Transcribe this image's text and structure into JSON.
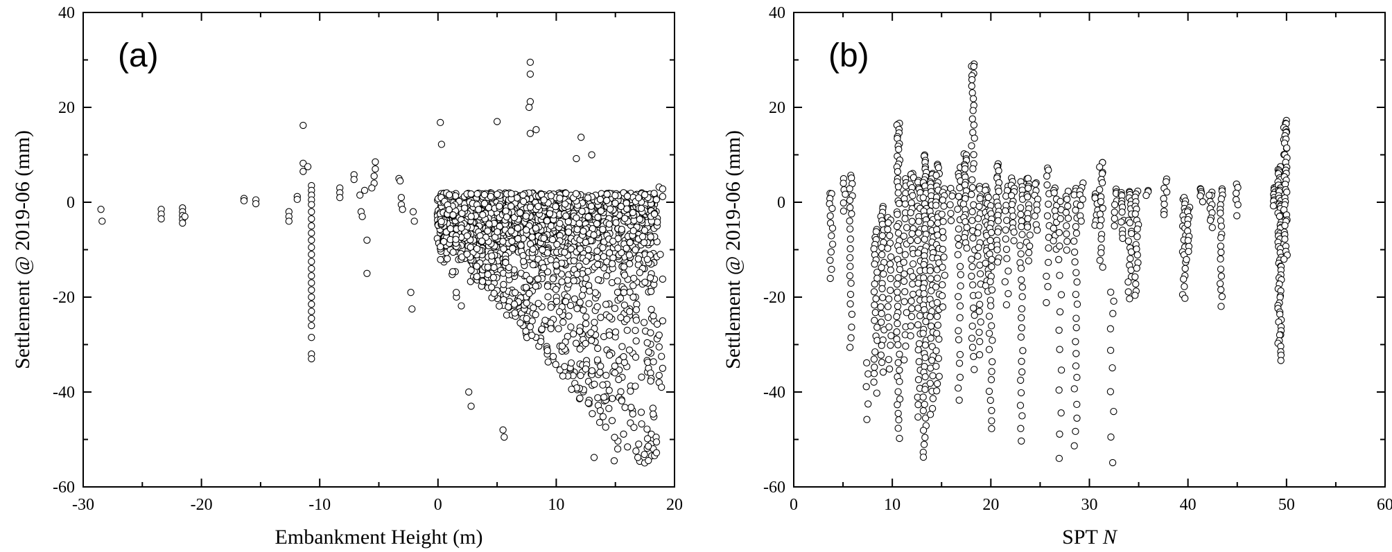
{
  "chart_data": [
    {
      "type": "scatter",
      "panel_label": "(a)",
      "xlabel": "Embankment Height (m)",
      "ylabel": "Settlement @ 2019-06 (mm)",
      "xlim": [
        -30,
        20
      ],
      "ylim": [
        -60,
        40
      ],
      "xticks": [
        -30,
        -20,
        -10,
        0,
        10,
        20
      ],
      "yticks": [
        -60,
        -40,
        -20,
        0,
        20,
        40
      ],
      "marker": "open-circle",
      "points": [
        [
          -28.5,
          -1.5
        ],
        [
          -28.4,
          -4.0
        ],
        [
          -23.4,
          -1.5
        ],
        [
          -23.4,
          -2.5
        ],
        [
          -23.4,
          -3.5
        ],
        [
          -21.6,
          -1.2
        ],
        [
          -21.6,
          -2.0
        ],
        [
          -21.6,
          -2.8
        ],
        [
          -21.6,
          -3.6
        ],
        [
          -21.6,
          -4.4
        ],
        [
          -21.4,
          -3.0
        ],
        [
          -16.4,
          0.8
        ],
        [
          -16.4,
          0.3
        ],
        [
          -15.4,
          0.5
        ],
        [
          -15.4,
          -0.3
        ],
        [
          -12.6,
          -2.0
        ],
        [
          -12.6,
          -3.0
        ],
        [
          -12.6,
          -4.0
        ],
        [
          -11.9,
          1.2
        ],
        [
          -11.9,
          0.6
        ],
        [
          -11.4,
          16.2
        ],
        [
          -11.4,
          8.2
        ],
        [
          -11.4,
          6.5
        ],
        [
          -11.0,
          7.5
        ],
        [
          -10.7,
          3.5
        ],
        [
          -10.7,
          2.5
        ],
        [
          -10.7,
          1.5
        ],
        [
          -10.7,
          0.5
        ],
        [
          -10.7,
          -0.5
        ],
        [
          -10.7,
          -2.0
        ],
        [
          -10.7,
          -3.5
        ],
        [
          -10.7,
          -5.0
        ],
        [
          -10.7,
          -6.5
        ],
        [
          -10.7,
          -8.0
        ],
        [
          -10.7,
          -9.5
        ],
        [
          -10.7,
          -11.0
        ],
        [
          -10.7,
          -12.5
        ],
        [
          -10.7,
          -14.0
        ],
        [
          -10.7,
          -15.5
        ],
        [
          -10.7,
          -17.0
        ],
        [
          -10.7,
          -18.5
        ],
        [
          -10.7,
          -20.0
        ],
        [
          -10.7,
          -21.5
        ],
        [
          -10.7,
          -23.0
        ],
        [
          -10.7,
          -24.5
        ],
        [
          -10.7,
          -26.0
        ],
        [
          -10.7,
          -28.5
        ],
        [
          -10.7,
          -32.0
        ],
        [
          -10.7,
          -33.0
        ],
        [
          -8.3,
          3.0
        ],
        [
          -8.3,
          2.0
        ],
        [
          -8.3,
          1.0
        ],
        [
          -7.1,
          5.8
        ],
        [
          -7.1,
          4.8
        ],
        [
          -6.6,
          1.5
        ],
        [
          -6.5,
          -2.0
        ],
        [
          -6.4,
          -3.0
        ],
        [
          -6.0,
          -8.0
        ],
        [
          -6.0,
          -15.0
        ],
        [
          -6.2,
          2.5
        ],
        [
          -5.3,
          8.5
        ],
        [
          -5.3,
          7.0
        ],
        [
          -5.4,
          5.5
        ],
        [
          -5.4,
          4.0
        ],
        [
          -5.6,
          3.0
        ],
        [
          -3.3,
          5.0
        ],
        [
          -3.2,
          4.5
        ],
        [
          -3.1,
          1.0
        ],
        [
          -3.1,
          -0.5
        ],
        [
          -3.0,
          -1.5
        ],
        [
          -2.3,
          -19.0
        ],
        [
          -2.2,
          -22.5
        ],
        [
          -2.1,
          -2.0
        ],
        [
          -2.0,
          -4.0
        ]
      ],
      "cloud": {
        "x_center": 6.0,
        "note": "dense cloud between x 0 and 19",
        "x_range": [
          -1.5,
          19.5
        ],
        "y_range": [
          -55,
          29.5
        ],
        "count": 1900
      },
      "outliers": [
        [
          7.8,
          29.5
        ],
        [
          7.8,
          27.0
        ],
        [
          7.8,
          21.2
        ],
        [
          7.7,
          20.0
        ],
        [
          7.8,
          14.5
        ],
        [
          8.3,
          15.3
        ],
        [
          5.0,
          17.0
        ],
        [
          0.2,
          16.8
        ],
        [
          0.3,
          12.2
        ],
        [
          12.1,
          13.7
        ],
        [
          11.7,
          9.2
        ],
        [
          13.0,
          10.0
        ],
        [
          18.7,
          3.2
        ],
        [
          19.0,
          2.8
        ],
        [
          19.0,
          1.2
        ],
        [
          18.8,
          -11.0
        ],
        [
          19.0,
          -16.2
        ],
        [
          19.0,
          -25.0
        ],
        [
          18.7,
          -28.0
        ],
        [
          18.7,
          -30.5
        ],
        [
          18.9,
          -32.5
        ],
        [
          19.0,
          -35.0
        ],
        [
          18.7,
          -36.5
        ],
        [
          18.7,
          -38.0
        ],
        [
          18.9,
          -39.0
        ],
        [
          15.2,
          -52.0
        ],
        [
          14.9,
          -54.5
        ],
        [
          13.2,
          -53.8
        ],
        [
          16.9,
          -53.8
        ],
        [
          5.5,
          -48.0
        ],
        [
          5.6,
          -49.5
        ],
        [
          2.8,
          -43.0
        ],
        [
          2.6,
          -40.0
        ]
      ]
    },
    {
      "type": "scatter",
      "panel_label": "(b)",
      "xlabel": "SPT",
      "xlabel_italic": "N",
      "ylabel": "Settlement @ 2019-06 (mm)",
      "xlim": [
        0,
        60
      ],
      "ylim": [
        -60,
        40
      ],
      "xticks": [
        0,
        10,
        20,
        30,
        40,
        50,
        60
      ],
      "yticks": [
        -60,
        -40,
        -20,
        0,
        20,
        40
      ],
      "marker": "open-circle",
      "columns": [
        {
          "x": 3.8,
          "top": 2.0,
          "bottom": -16.0,
          "n": 14
        },
        {
          "x": 5.2,
          "top": 5.0,
          "bottom": -2.0,
          "n": 6
        },
        {
          "x": 5.8,
          "top": 5.5,
          "bottom": -30.5,
          "n": 22
        },
        {
          "x": 7.5,
          "top": -34.0,
          "bottom": -46.0,
          "n": 5
        },
        {
          "x": 8.3,
          "top": -6.0,
          "bottom": -40.0,
          "n": 26
        },
        {
          "x": 9.0,
          "top": -1.0,
          "bottom": -36.0,
          "n": 26
        },
        {
          "x": 9.7,
          "top": -3.0,
          "bottom": -35.0,
          "n": 20
        },
        {
          "x": 10.6,
          "top": 16.8,
          "bottom": -49.5,
          "n": 55
        },
        {
          "x": 11.3,
          "top": 5.0,
          "bottom": -33.0,
          "n": 22
        },
        {
          "x": 12.0,
          "top": 6.0,
          "bottom": -28.0,
          "n": 26
        },
        {
          "x": 12.7,
          "top": 4.5,
          "bottom": -45.0,
          "n": 34
        },
        {
          "x": 13.3,
          "top": 10.0,
          "bottom": -54.0,
          "n": 60
        },
        {
          "x": 14.0,
          "top": 6.0,
          "bottom": -45.0,
          "n": 42
        },
        {
          "x": 14.6,
          "top": 8.0,
          "bottom": -40.0,
          "n": 36
        },
        {
          "x": 15.2,
          "top": 3.0,
          "bottom": -22.0,
          "n": 16
        },
        {
          "x": 16.0,
          "top": 3.0,
          "bottom": -4.0,
          "n": 6
        },
        {
          "x": 16.8,
          "top": 7.0,
          "bottom": -42.0,
          "n": 26
        },
        {
          "x": 17.4,
          "top": 10.0,
          "bottom": -10.0,
          "n": 24
        },
        {
          "x": 18.2,
          "top": 29.5,
          "bottom": -35.0,
          "n": 40
        },
        {
          "x": 18.8,
          "top": 3.0,
          "bottom": -32.0,
          "n": 22
        },
        {
          "x": 19.6,
          "top": 3.0,
          "bottom": -19.0,
          "n": 24
        },
        {
          "x": 20.0,
          "top": -1.0,
          "bottom": -48.0,
          "n": 30
        },
        {
          "x": 20.7,
          "top": 8.0,
          "bottom": -13.0,
          "n": 22
        },
        {
          "x": 21.6,
          "top": 3.0,
          "bottom": -22.0,
          "n": 14
        },
        {
          "x": 22.2,
          "top": 5.0,
          "bottom": -8.0,
          "n": 14
        },
        {
          "x": 23.1,
          "top": 4.0,
          "bottom": -50.0,
          "n": 30
        },
        {
          "x": 23.8,
          "top": 5.0,
          "bottom": -12.0,
          "n": 18
        },
        {
          "x": 24.6,
          "top": 4.0,
          "bottom": -6.0,
          "n": 10
        },
        {
          "x": 25.8,
          "top": 7.5,
          "bottom": -21.0,
          "n": 14
        },
        {
          "x": 26.5,
          "top": 3.0,
          "bottom": -10.0,
          "n": 12
        },
        {
          "x": 27.0,
          "top": 0.0,
          "bottom": -54.0,
          "n": 16
        },
        {
          "x": 27.7,
          "top": 2.0,
          "bottom": -10.0,
          "n": 10
        },
        {
          "x": 28.6,
          "top": 3.0,
          "bottom": -51.0,
          "n": 26
        },
        {
          "x": 29.2,
          "top": 4.0,
          "bottom": -4.0,
          "n": 8
        },
        {
          "x": 30.7,
          "top": 2.0,
          "bottom": -5.0,
          "n": 8
        },
        {
          "x": 31.2,
          "top": 8.5,
          "bottom": -14.0,
          "n": 20
        },
        {
          "x": 32.3,
          "top": -19.0,
          "bottom": -54.5,
          "n": 10
        },
        {
          "x": 32.6,
          "top": 3.0,
          "bottom": -5.0,
          "n": 8
        },
        {
          "x": 33.4,
          "top": 2.0,
          "bottom": -8.0,
          "n": 12
        },
        {
          "x": 34.1,
          "top": 2.5,
          "bottom": -20.0,
          "n": 22
        },
        {
          "x": 34.8,
          "top": 2.0,
          "bottom": -20.0,
          "n": 20
        },
        {
          "x": 35.8,
          "top": 2.5,
          "bottom": 1.5,
          "n": 3
        },
        {
          "x": 37.7,
          "top": 4.5,
          "bottom": -3.0,
          "n": 8
        },
        {
          "x": 39.6,
          "top": 1.0,
          "bottom": -20.5,
          "n": 22
        },
        {
          "x": 40.0,
          "top": -1.0,
          "bottom": -12.0,
          "n": 12
        },
        {
          "x": 41.4,
          "top": 3.0,
          "bottom": 0.5,
          "n": 6
        },
        {
          "x": 42.3,
          "top": 2.0,
          "bottom": -5.0,
          "n": 10
        },
        {
          "x": 43.4,
          "top": 2.5,
          "bottom": -22.0,
          "n": 20
        },
        {
          "x": 45.0,
          "top": 4.0,
          "bottom": -2.5,
          "n": 6
        },
        {
          "x": 48.8,
          "top": 3.0,
          "bottom": -1.0,
          "n": 10
        },
        {
          "x": 49.3,
          "top": 7.5,
          "bottom": -33.0,
          "n": 70
        },
        {
          "x": 49.9,
          "top": 17.0,
          "bottom": -12.0,
          "n": 40
        }
      ]
    }
  ]
}
